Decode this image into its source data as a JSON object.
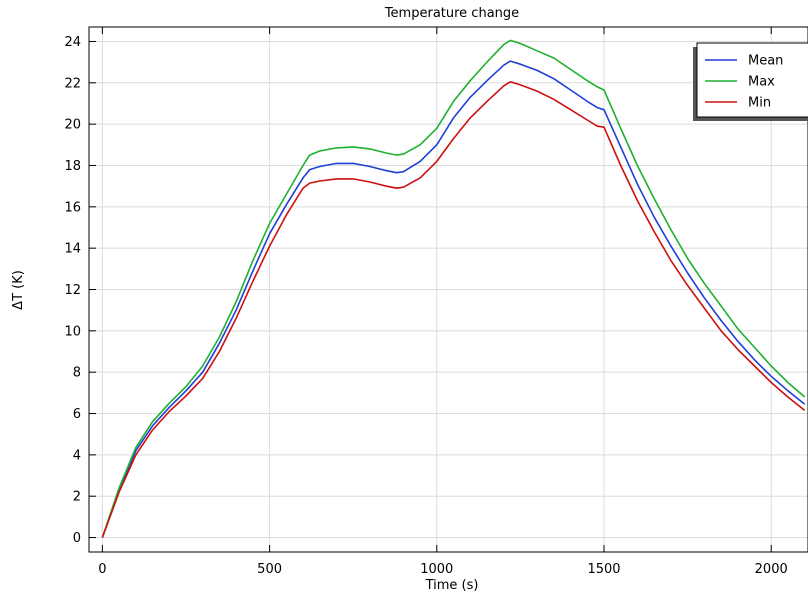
{
  "chart_data": {
    "type": "line",
    "title": "Temperature change",
    "xlabel": "Time (s)",
    "ylabel": "ΔT (K)",
    "xlim": [
      -40,
      2110
    ],
    "ylim": [
      -0.7,
      24.7
    ],
    "xticks": [
      0,
      500,
      1000,
      1500,
      2000
    ],
    "yticks": [
      0,
      2,
      4,
      6,
      8,
      10,
      12,
      14,
      16,
      18,
      20,
      22,
      24
    ],
    "grid": true,
    "legend_position": "top-right",
    "series": [
      {
        "name": "Mean",
        "color": "#1f3fd6",
        "points": [
          [
            0,
            0
          ],
          [
            50,
            2.3
          ],
          [
            100,
            4.2
          ],
          [
            150,
            5.4
          ],
          [
            200,
            6.3
          ],
          [
            250,
            7.1
          ],
          [
            300,
            8
          ],
          [
            350,
            9.4
          ],
          [
            400,
            11
          ],
          [
            450,
            12.9
          ],
          [
            500,
            14.7
          ],
          [
            550,
            16.1
          ],
          [
            600,
            17.4
          ],
          [
            620,
            17.8
          ],
          [
            650,
            17.95
          ],
          [
            700,
            18.1
          ],
          [
            750,
            18.1
          ],
          [
            800,
            17.95
          ],
          [
            850,
            17.75
          ],
          [
            880,
            17.65
          ],
          [
            900,
            17.7
          ],
          [
            950,
            18.2
          ],
          [
            1000,
            19
          ],
          [
            1050,
            20.3
          ],
          [
            1100,
            21.3
          ],
          [
            1150,
            22.1
          ],
          [
            1200,
            22.85
          ],
          [
            1220,
            23.05
          ],
          [
            1250,
            22.9
          ],
          [
            1300,
            22.6
          ],
          [
            1350,
            22.2
          ],
          [
            1400,
            21.65
          ],
          [
            1450,
            21.1
          ],
          [
            1480,
            20.8
          ],
          [
            1500,
            20.7
          ],
          [
            1550,
            18.9
          ],
          [
            1600,
            17.1
          ],
          [
            1650,
            15.5
          ],
          [
            1700,
            14.1
          ],
          [
            1750,
            12.8
          ],
          [
            1800,
            11.6
          ],
          [
            1850,
            10.5
          ],
          [
            1900,
            9.5
          ],
          [
            1950,
            8.6
          ],
          [
            2000,
            7.8
          ],
          [
            2050,
            7.1
          ],
          [
            2100,
            6.45
          ]
        ]
      },
      {
        "name": "Max",
        "color": "#1fb030",
        "points": [
          [
            0,
            0
          ],
          [
            50,
            2.4
          ],
          [
            100,
            4.35
          ],
          [
            150,
            5.6
          ],
          [
            200,
            6.5
          ],
          [
            250,
            7.3
          ],
          [
            300,
            8.3
          ],
          [
            350,
            9.7
          ],
          [
            400,
            11.4
          ],
          [
            450,
            13.4
          ],
          [
            500,
            15.2
          ],
          [
            550,
            16.6
          ],
          [
            600,
            18
          ],
          [
            620,
            18.5
          ],
          [
            650,
            18.7
          ],
          [
            700,
            18.85
          ],
          [
            750,
            18.9
          ],
          [
            800,
            18.8
          ],
          [
            850,
            18.6
          ],
          [
            880,
            18.5
          ],
          [
            900,
            18.55
          ],
          [
            950,
            19.0
          ],
          [
            1000,
            19.8
          ],
          [
            1050,
            21.1
          ],
          [
            1100,
            22.1
          ],
          [
            1150,
            23.0
          ],
          [
            1200,
            23.85
          ],
          [
            1220,
            24.05
          ],
          [
            1250,
            23.9
          ],
          [
            1300,
            23.55
          ],
          [
            1350,
            23.2
          ],
          [
            1400,
            22.65
          ],
          [
            1450,
            22.1
          ],
          [
            1480,
            21.8
          ],
          [
            1500,
            21.65
          ],
          [
            1550,
            19.8
          ],
          [
            1600,
            18.0
          ],
          [
            1650,
            16.4
          ],
          [
            1700,
            14.9
          ],
          [
            1750,
            13.5
          ],
          [
            1800,
            12.3
          ],
          [
            1850,
            11.2
          ],
          [
            1900,
            10.1
          ],
          [
            1950,
            9.2
          ],
          [
            2000,
            8.3
          ],
          [
            2050,
            7.5
          ],
          [
            2100,
            6.8
          ]
        ]
      },
      {
        "name": "Min",
        "color": "#cc1010",
        "points": [
          [
            0,
            0
          ],
          [
            50,
            2.2
          ],
          [
            100,
            4.0
          ],
          [
            150,
            5.2
          ],
          [
            200,
            6.1
          ],
          [
            250,
            6.85
          ],
          [
            300,
            7.7
          ],
          [
            350,
            9.0
          ],
          [
            400,
            10.6
          ],
          [
            450,
            12.4
          ],
          [
            500,
            14.1
          ],
          [
            550,
            15.6
          ],
          [
            600,
            16.9
          ],
          [
            620,
            17.15
          ],
          [
            650,
            17.25
          ],
          [
            700,
            17.35
          ],
          [
            750,
            17.35
          ],
          [
            800,
            17.2
          ],
          [
            850,
            17.0
          ],
          [
            880,
            16.9
          ],
          [
            900,
            16.95
          ],
          [
            950,
            17.4
          ],
          [
            1000,
            18.2
          ],
          [
            1050,
            19.3
          ],
          [
            1100,
            20.3
          ],
          [
            1150,
            21.1
          ],
          [
            1200,
            21.85
          ],
          [
            1220,
            22.05
          ],
          [
            1250,
            21.9
          ],
          [
            1300,
            21.6
          ],
          [
            1350,
            21.2
          ],
          [
            1400,
            20.7
          ],
          [
            1450,
            20.2
          ],
          [
            1480,
            19.9
          ],
          [
            1500,
            19.85
          ],
          [
            1550,
            18.0
          ],
          [
            1600,
            16.3
          ],
          [
            1650,
            14.8
          ],
          [
            1700,
            13.4
          ],
          [
            1750,
            12.2
          ],
          [
            1800,
            11.1
          ],
          [
            1850,
            10.0
          ],
          [
            1900,
            9.1
          ],
          [
            1950,
            8.3
          ],
          [
            2000,
            7.5
          ],
          [
            2050,
            6.8
          ],
          [
            2100,
            6.15
          ]
        ]
      }
    ]
  }
}
